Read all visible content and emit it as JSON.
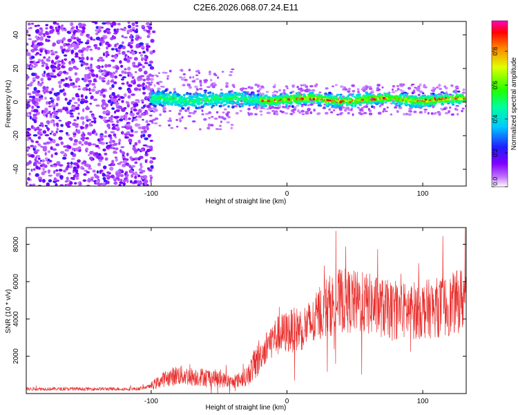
{
  "title": "C2E6.2026.068.07.24.E11",
  "chart_data": [
    {
      "type": "heatmap",
      "xlabel": "Height of straight line (km)",
      "ylabel": "Frequency (Hz)",
      "xlim": [
        -192,
        132
      ],
      "ylim": [
        -50,
        48
      ],
      "x_ticks": [
        -100,
        0,
        100
      ],
      "y_ticks": [
        -40,
        -20,
        0,
        20,
        40
      ],
      "colorbar": {
        "label": "Normalized spectral amplitude",
        "range": [
          0.0,
          0.98
        ],
        "ticks": [
          "0.0",
          "0.2",
          "0.4",
          "0.6",
          "0.8"
        ],
        "tick_values": [
          0.0,
          0.2,
          0.4,
          0.6,
          0.8
        ],
        "colors": [
          "#ffffff",
          "#a000ff",
          "#2020ff",
          "#00ffff",
          "#00ff00",
          "#ffff00",
          "#ff0000",
          "#ff00c0"
        ]
      },
      "regions": [
        {
          "name": "noise",
          "x_range": [
            -192,
            -100
          ],
          "freq_range": [
            -50,
            48
          ],
          "amplitude": 0.15
        },
        {
          "name": "signal-band",
          "x_range": [
            -100,
            132
          ],
          "freq_center": 1.5,
          "freq_halfwidth": 5,
          "amplitude_peak": 0.95
        }
      ]
    },
    {
      "type": "line",
      "xlabel": "Height of straight line (km)",
      "ylabel": "SNR (10 * v/v)",
      "xlim": [
        -192,
        132
      ],
      "ylim": [
        0,
        8900
      ],
      "x_ticks": [
        -100,
        0,
        100
      ],
      "y_ticks": [
        2000,
        4000,
        6000,
        8000
      ],
      "color": "#e8302e",
      "envelope": {
        "x": [
          -192,
          -110,
          -100,
          -90,
          -80,
          -70,
          -60,
          -50,
          -40,
          -30,
          -20,
          -10,
          0,
          10,
          20,
          25,
          40,
          60,
          80,
          100,
          120,
          132
        ],
        "y": [
          250,
          250,
          400,
          800,
          1000,
          900,
          900,
          800,
          600,
          900,
          2000,
          3000,
          3300,
          3500,
          3800,
          4500,
          5000,
          4800,
          4400,
          4500,
          4700,
          5200
        ]
      }
    }
  ]
}
